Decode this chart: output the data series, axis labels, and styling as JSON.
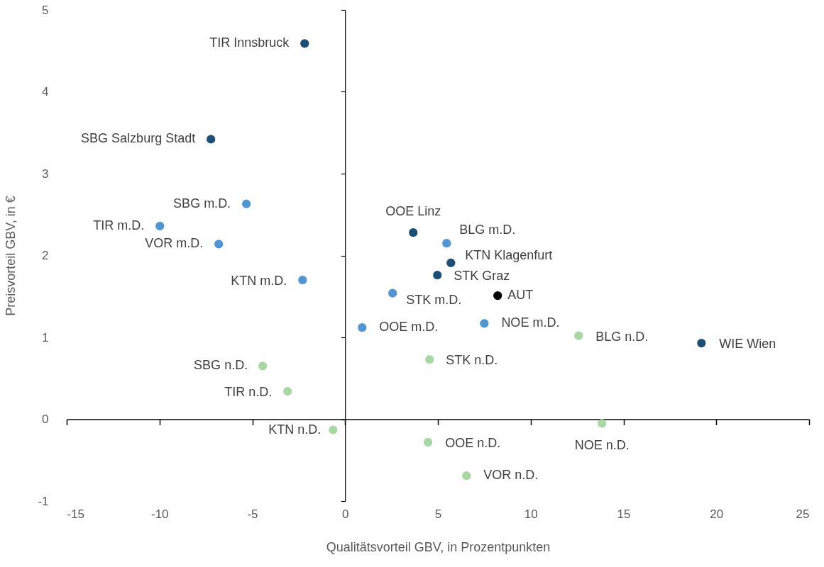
{
  "chart_data": {
    "type": "scatter",
    "xlabel": "Qualitätsvorteil GBV, in Prozentpunkten",
    "ylabel": "Preisvorteil GBV, in €",
    "xlim": [
      -15,
      25
    ],
    "ylim": [
      -1,
      5
    ],
    "xticks": [
      -15,
      -10,
      -5,
      0,
      5,
      10,
      15,
      20,
      25
    ],
    "yticks": [
      -1,
      0,
      1,
      2,
      3,
      4,
      5
    ],
    "grid": false,
    "series": [
      {
        "color": "#1b4f78",
        "x": [
          -2.18,
          -7.23,
          3.67,
          5.7,
          4.97,
          19.2
        ],
        "values": [
          4.59,
          3.42,
          2.28,
          1.91,
          1.76,
          0.93
        ]
      },
      {
        "color": "#4f96d6",
        "x": [
          -5.32,
          -9.98,
          -6.81,
          -2.29,
          5.47,
          2.56,
          0.92,
          7.5
        ],
        "values": [
          2.63,
          2.36,
          2.14,
          1.7,
          2.15,
          1.54,
          1.12,
          1.17
        ]
      },
      {
        "color": "#a8d8a2",
        "x": [
          12.58,
          -4.44,
          4.55,
          -3.1,
          -0.65,
          13.84,
          4.47,
          6.54
        ],
        "values": [
          1.02,
          0.65,
          0.73,
          0.34,
          -0.13,
          -0.05,
          -0.28,
          -0.69
        ]
      },
      {
        "color": "#000000",
        "x": [
          8.22
        ],
        "values": [
          1.51
        ]
      }
    ],
    "annotations": [
      {
        "text": "TIR Innsbruck",
        "x": -2.18,
        "y": 4.59
      },
      {
        "text": "SBG Salzburg Stadt",
        "x": -7.23,
        "y": 3.42
      },
      {
        "text": "SBG m.D.",
        "x": -5.32,
        "y": 2.63
      },
      {
        "text": "TIR m.D.",
        "x": -9.98,
        "y": 2.36
      },
      {
        "text": "VOR m.D.",
        "x": -6.81,
        "y": 2.14
      },
      {
        "text": "KTN m.D.",
        "x": -2.29,
        "y": 1.7
      },
      {
        "text": "OOE Linz",
        "x": 3.67,
        "y": 2.28
      },
      {
        "text": "BLG m.D.",
        "x": 5.47,
        "y": 2.15
      },
      {
        "text": "KTN Klagenfurt",
        "x": 5.7,
        "y": 1.91
      },
      {
        "text": "STK Graz",
        "x": 4.97,
        "y": 1.76
      },
      {
        "text": "STK m.D.",
        "x": 2.56,
        "y": 1.54
      },
      {
        "text": "AUT",
        "x": 8.22,
        "y": 1.51
      },
      {
        "text": "OOE m.D.",
        "x": 0.92,
        "y": 1.12
      },
      {
        "text": "NOE m.D.",
        "x": 7.5,
        "y": 1.17
      },
      {
        "text": "BLG n.D.",
        "x": 12.58,
        "y": 1.02
      },
      {
        "text": "WIE Wien",
        "x": 19.2,
        "y": 0.93
      },
      {
        "text": "SBG n.D.",
        "x": -4.44,
        "y": 0.65
      },
      {
        "text": "STK n.D.",
        "x": 4.55,
        "y": 0.73
      },
      {
        "text": "TIR n.D.",
        "x": -3.1,
        "y": 0.34
      },
      {
        "text": "KTN n.D.",
        "x": -0.65,
        "y": -0.13
      },
      {
        "text": "NOE n.D.",
        "x": 13.84,
        "y": -0.05
      },
      {
        "text": "OOE n.D.",
        "x": 4.47,
        "y": -0.28
      },
      {
        "text": "VOR n.D.",
        "x": 6.54,
        "y": -0.69
      }
    ]
  }
}
